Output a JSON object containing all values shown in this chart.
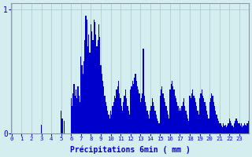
{
  "xlabel": "Précipitations 6min ( mm )",
  "bar_color": "#0000cc",
  "bg_color": "#d4eef0",
  "grid_color": "#a8c8cc",
  "axis_color": "#8899aa",
  "text_color": "#0000cc",
  "ylim": [
    0,
    1.05
  ],
  "ytick_vals": [
    0,
    1
  ],
  "ytick_labels": [
    "0",
    "1"
  ],
  "hour_labels": [
    "0",
    "1",
    "2",
    "3",
    "4",
    "5",
    "6",
    "7",
    "8",
    "9",
    "10",
    "11",
    "12",
    "13",
    "14",
    "15",
    "16",
    "17",
    "18",
    "19",
    "20",
    "21",
    "22",
    "23"
  ],
  "values": [
    0,
    0,
    0,
    0,
    0,
    0,
    0,
    0,
    0,
    0,
    0,
    0,
    0,
    0,
    0,
    0,
    0,
    0,
    0,
    0,
    0,
    0,
    0,
    0,
    0,
    0,
    0,
    0,
    0,
    0,
    0.07,
    0,
    0,
    0,
    0,
    0,
    0,
    0,
    0,
    0,
    0,
    0,
    0,
    0,
    0,
    0,
    0,
    0,
    0,
    0,
    0.18,
    0.12,
    0,
    0.1,
    0,
    0,
    0,
    0,
    0,
    0,
    0.28,
    0.22,
    0.32,
    0.4,
    0.3,
    0.35,
    0.28,
    0.38,
    0.3,
    0.25,
    0.62,
    0.55,
    0.48,
    0.58,
    0.75,
    0.95,
    0.92,
    0.7,
    0.8,
    0.65,
    0.88,
    0.82,
    0.75,
    0.92,
    0.9,
    0.8,
    0.7,
    0.75,
    0.88,
    0.78,
    0.55,
    0.48,
    0.42,
    0.38,
    0.3,
    0.25,
    0.22,
    0.18,
    0.15,
    0.12,
    0.18,
    0.15,
    0.22,
    0.25,
    0.3,
    0.28,
    0.35,
    0.38,
    0.42,
    0.32,
    0.28,
    0.22,
    0.18,
    0.25,
    0.3,
    0.35,
    0.28,
    0.22,
    0.18,
    0.15,
    0.35,
    0.38,
    0.42,
    0.4,
    0.45,
    0.48,
    0.42,
    0.38,
    0.35,
    0.32,
    0.25,
    0.28,
    0.32,
    0.68,
    0.3,
    0.25,
    0.22,
    0.18,
    0.15,
    0.12,
    0.18,
    0.22,
    0.28,
    0.25,
    0.22,
    0.18,
    0.15,
    0.12,
    0.1,
    0.08,
    0.3,
    0.35,
    0.38,
    0.32,
    0.28,
    0.25,
    0.22,
    0.18,
    0.15,
    0.12,
    0.35,
    0.4,
    0.42,
    0.38,
    0.35,
    0.3,
    0.28,
    0.25,
    0.22,
    0.18,
    0.2,
    0.18,
    0.22,
    0.25,
    0.28,
    0.22,
    0.18,
    0.15,
    0.12,
    0.1,
    0.3,
    0.28,
    0.32,
    0.35,
    0.3,
    0.28,
    0.25,
    0.22,
    0.18,
    0.15,
    0.28,
    0.32,
    0.35,
    0.3,
    0.28,
    0.25,
    0.22,
    0.18,
    0.15,
    0.12,
    0.25,
    0.28,
    0.32,
    0.3,
    0.25,
    0.22,
    0.18,
    0.15,
    0.12,
    0.1,
    0.08,
    0.08,
    0.06,
    0.05,
    0.08,
    0.06,
    0.07,
    0.05,
    0.06,
    0.08,
    0.12,
    0.1,
    0.08,
    0.06,
    0.05,
    0.08,
    0.1,
    0.12,
    0.1,
    0.08,
    0.08,
    0.06,
    0.08,
    0.05,
    0.06,
    0.08,
    0.07,
    0.06,
    0.08,
    0.1
  ]
}
